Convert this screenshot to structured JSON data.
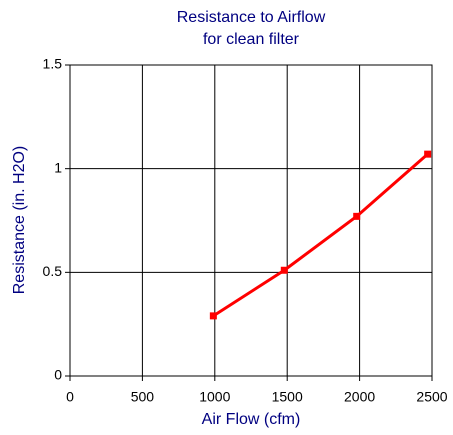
{
  "chart_data": {
    "type": "line",
    "title": "Resistance to Airflow",
    "subtitle": "for clean filter",
    "x_label": "Air Flow (cfm)",
    "y_label": "Resistance (in. H2O)",
    "x": [
      990,
      1480,
      1980,
      2470
    ],
    "series": [
      {
        "name": "Resistance",
        "color": "#ff0000",
        "values": [
          0.29,
          0.51,
          0.77,
          1.07
        ]
      }
    ],
    "xlim": [
      0,
      2500
    ],
    "xticks": [
      0,
      500,
      1000,
      1500,
      2000,
      2500
    ],
    "ylim": [
      0,
      1.5
    ],
    "yticks": [
      0,
      0.5,
      1,
      1.5
    ],
    "grid": true
  }
}
